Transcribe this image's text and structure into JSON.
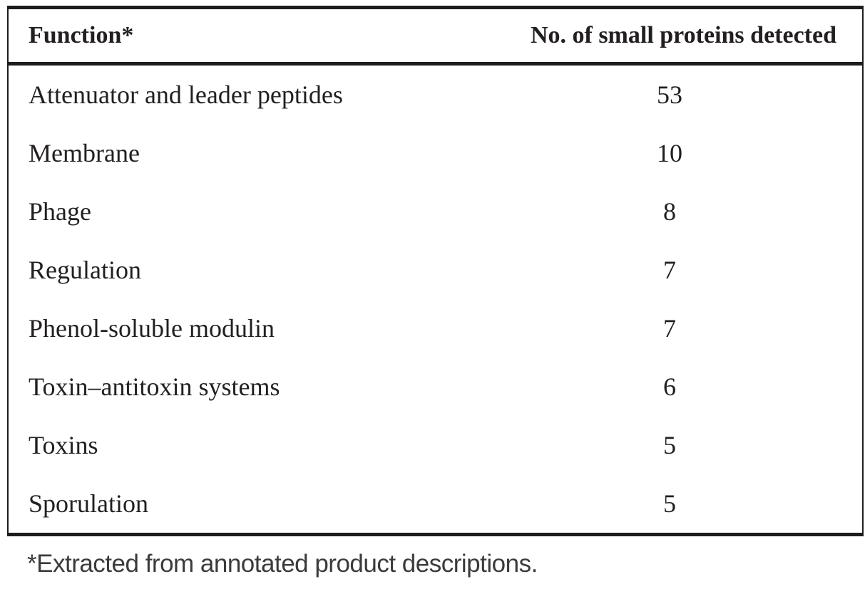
{
  "table": {
    "header": {
      "function_label": "Function*",
      "count_label": "No. of small proteins detected"
    },
    "rows": [
      {
        "function": "Attenuator and leader peptides",
        "count": "53"
      },
      {
        "function": "Membrane",
        "count": "10"
      },
      {
        "function": "Phage",
        "count": "8"
      },
      {
        "function": "Regulation",
        "count": "7"
      },
      {
        "function": "Phenol-soluble modulin",
        "count": "7"
      },
      {
        "function": "Toxin–antitoxin systems",
        "count": "6"
      },
      {
        "function": "Toxins",
        "count": "5"
      },
      {
        "function": "Sporulation",
        "count": "5"
      }
    ],
    "footnote": "*Extracted from annotated product descriptions."
  },
  "colors": {
    "text": "#231f20",
    "border": "#1f1c1d",
    "footnote_text": "#3b3b3b",
    "background": "#ffffff"
  }
}
